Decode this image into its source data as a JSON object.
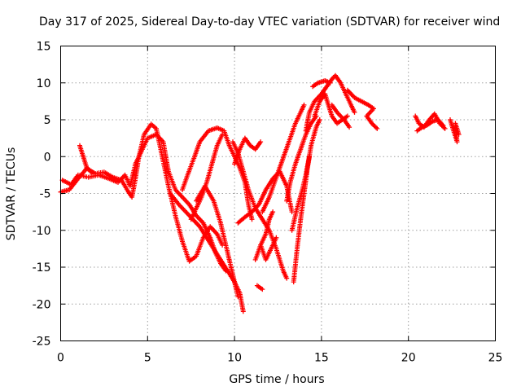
{
  "chart_data": {
    "type": "scatter",
    "title": "Day 317 of 2025, Sidereal Day-to-day VTEC variation (SDTVAR) for receiver wind",
    "xlabel": "GPS time / hours",
    "ylabel": "SDTVAR / TECUs",
    "xlim": [
      0,
      25
    ],
    "ylim": [
      -25,
      15
    ],
    "xticks": [
      "0",
      "5",
      "10",
      "15",
      "20",
      "25"
    ],
    "yticks": [
      "15",
      "10",
      "5",
      "0",
      "-5",
      "-10",
      "-15",
      "-20",
      "-25"
    ],
    "grid": true,
    "legend": "none",
    "marker": "plus",
    "color": "#ff0000",
    "tracks": [
      [
        [
          0.0,
          -4.8
        ],
        [
          0.5,
          -4.5
        ],
        [
          1.0,
          -3.0
        ],
        [
          1.5,
          -1.6
        ],
        [
          2.0,
          -2.3
        ],
        [
          2.5,
          -2.1
        ],
        [
          3.0,
          -2.8
        ],
        [
          3.5,
          -3.2
        ],
        [
          3.9,
          -4.8
        ],
        [
          4.1,
          -5.5
        ],
        [
          4.3,
          -3.0
        ],
        [
          4.5,
          0.0
        ],
        [
          4.8,
          3.0
        ],
        [
          5.2,
          4.4
        ],
        [
          5.5,
          3.8
        ],
        [
          5.8,
          0.5
        ],
        [
          6.2,
          -4.0
        ],
        [
          6.6,
          -8.0
        ],
        [
          7.0,
          -11.5
        ],
        [
          7.4,
          -14.2
        ],
        [
          7.8,
          -13.5
        ],
        [
          8.2,
          -11.0
        ],
        [
          8.6,
          -9.5
        ],
        [
          9.0,
          -10.5
        ],
        [
          9.3,
          -12.0
        ]
      ],
      [
        [
          0.1,
          -3.2
        ],
        [
          0.6,
          -3.8
        ],
        [
          1.0,
          -2.5
        ],
        [
          1.6,
          -2.8
        ],
        [
          2.2,
          -2.5
        ],
        [
          2.8,
          -3.0
        ],
        [
          3.3,
          -3.5
        ],
        [
          3.7,
          -2.5
        ],
        [
          4.0,
          -4.0
        ],
        [
          4.3,
          -1.0
        ],
        [
          4.7,
          1.0
        ],
        [
          5.0,
          2.5
        ],
        [
          5.5,
          3.0
        ],
        [
          5.9,
          2.0
        ],
        [
          6.2,
          -2.0
        ],
        [
          6.6,
          -4.5
        ],
        [
          7.0,
          -5.5
        ],
        [
          7.4,
          -6.5
        ],
        [
          7.8,
          -8.0
        ],
        [
          8.2,
          -9.0
        ],
        [
          8.6,
          -11.0
        ],
        [
          8.9,
          -13.0
        ],
        [
          9.2,
          -14.5
        ],
        [
          9.5,
          -15.5
        ]
      ],
      [
        [
          1.1,
          1.5
        ],
        [
          1.3,
          0.0
        ],
        [
          1.5,
          -1.5
        ],
        [
          1.8,
          -2.2
        ]
      ],
      [
        [
          6.3,
          -5.0
        ],
        [
          6.8,
          -6.5
        ],
        [
          7.2,
          -7.5
        ],
        [
          7.6,
          -8.5
        ],
        [
          8.0,
          -9.5
        ],
        [
          8.4,
          -11.0
        ],
        [
          8.8,
          -12.5
        ],
        [
          9.2,
          -14.0
        ],
        [
          9.6,
          -15.5
        ],
        [
          10.0,
          -17.0
        ],
        [
          10.3,
          -18.5
        ],
        [
          10.5,
          -21.0
        ]
      ],
      [
        [
          7.0,
          -4.5
        ],
        [
          7.3,
          -2.5
        ],
        [
          7.7,
          0.0
        ],
        [
          8.0,
          2.0
        ],
        [
          8.5,
          3.5
        ],
        [
          9.0,
          3.9
        ],
        [
          9.4,
          3.5
        ],
        [
          9.7,
          1.5
        ],
        [
          10.0,
          0.0
        ],
        [
          10.3,
          -1.5
        ],
        [
          10.6,
          -3.5
        ],
        [
          10.8,
          -6.5
        ],
        [
          11.0,
          -8.5
        ]
      ],
      [
        [
          7.5,
          -8.5
        ],
        [
          7.8,
          -7.0
        ],
        [
          8.1,
          -5.5
        ],
        [
          8.4,
          -3.5
        ],
        [
          8.7,
          -1.0
        ],
        [
          9.0,
          1.5
        ],
        [
          9.3,
          3.0
        ]
      ],
      [
        [
          7.8,
          -6.0
        ],
        [
          8.3,
          -4.0
        ],
        [
          8.8,
          -6.0
        ],
        [
          9.2,
          -9.0
        ],
        [
          9.6,
          -13.0
        ],
        [
          9.9,
          -16.0
        ],
        [
          10.2,
          -19.0
        ]
      ],
      [
        [
          9.9,
          2.0
        ],
        [
          10.2,
          0.5
        ],
        [
          10.5,
          -2.0
        ],
        [
          10.8,
          -4.5
        ],
        [
          11.2,
          -7.0
        ],
        [
          11.6,
          -8.5
        ],
        [
          12.0,
          -10.0
        ],
        [
          12.4,
          -12.5
        ],
        [
          12.8,
          -15.5
        ],
        [
          13.0,
          -16.5
        ]
      ],
      [
        [
          10.2,
          -9.0
        ],
        [
          10.6,
          -8.2
        ],
        [
          11.0,
          -7.5
        ],
        [
          11.4,
          -6.5
        ],
        [
          11.8,
          -4.5
        ],
        [
          12.2,
          -3.0
        ],
        [
          12.6,
          -2.0
        ],
        [
          13.0,
          -4.0
        ],
        [
          13.3,
          -7.5
        ]
      ],
      [
        [
          10.0,
          -1.0
        ],
        [
          10.3,
          1.0
        ],
        [
          10.6,
          2.5
        ],
        [
          10.9,
          1.5
        ],
        [
          11.2,
          1.0
        ],
        [
          11.5,
          2.0
        ]
      ],
      [
        [
          11.6,
          -7.5
        ],
        [
          12.0,
          -5.5
        ],
        [
          12.3,
          -3.5
        ],
        [
          12.6,
          -1.5
        ],
        [
          12.9,
          0.5
        ],
        [
          13.2,
          2.5
        ],
        [
          13.5,
          4.5
        ],
        [
          13.8,
          6.0
        ],
        [
          14.0,
          7.0
        ]
      ],
      [
        [
          11.5,
          -12.0
        ],
        [
          11.8,
          -14.0
        ],
        [
          12.1,
          -12.5
        ],
        [
          12.4,
          -11.0
        ]
      ],
      [
        [
          11.2,
          -14.0
        ],
        [
          11.5,
          -12.0
        ],
        [
          11.8,
          -10.5
        ],
        [
          12.0,
          -8.5
        ],
        [
          12.2,
          -7.5
        ]
      ],
      [
        [
          11.3,
          -17.5
        ],
        [
          11.6,
          -18.0
        ]
      ],
      [
        [
          13.0,
          -6.0
        ],
        [
          13.2,
          -3.5
        ],
        [
          13.5,
          -1.0
        ],
        [
          13.8,
          1.0
        ],
        [
          14.1,
          3.0
        ],
        [
          14.4,
          4.5
        ],
        [
          14.7,
          5.5
        ]
      ],
      [
        [
          13.4,
          -17.0
        ],
        [
          13.6,
          -12.5
        ],
        [
          13.8,
          -8.5
        ],
        [
          14.0,
          -5.0
        ],
        [
          14.2,
          -1.5
        ],
        [
          14.4,
          1.5
        ],
        [
          14.7,
          4.0
        ],
        [
          14.9,
          5.0
        ]
      ],
      [
        [
          13.3,
          -10.0
        ],
        [
          13.6,
          -7.0
        ],
        [
          13.9,
          -4.5
        ],
        [
          14.1,
          -2.5
        ],
        [
          14.3,
          0.0
        ]
      ],
      [
        [
          14.1,
          3.5
        ],
        [
          14.3,
          6.0
        ],
        [
          14.6,
          7.5
        ],
        [
          15.0,
          8.5
        ],
        [
          15.3,
          9.5
        ],
        [
          15.6,
          10.5
        ],
        [
          15.8,
          11.0
        ],
        [
          16.1,
          10.0
        ],
        [
          16.4,
          8.5
        ],
        [
          16.7,
          7.0
        ],
        [
          16.9,
          6.0
        ]
      ],
      [
        [
          14.6,
          5.5
        ],
        [
          14.9,
          7.5
        ],
        [
          15.2,
          8.5
        ],
        [
          15.4,
          7.0
        ],
        [
          15.6,
          5.5
        ],
        [
          15.9,
          4.5
        ],
        [
          16.2,
          5.0
        ],
        [
          16.5,
          5.5
        ]
      ],
      [
        [
          14.5,
          9.5
        ],
        [
          14.8,
          10.0
        ],
        [
          15.2,
          10.3
        ],
        [
          15.5,
          10.0
        ]
      ],
      [
        [
          15.6,
          7.0
        ],
        [
          15.9,
          6.0
        ],
        [
          16.3,
          5.0
        ],
        [
          16.6,
          4.0
        ]
      ],
      [
        [
          16.5,
          9.0
        ],
        [
          16.9,
          8.0
        ],
        [
          17.3,
          7.5
        ],
        [
          17.7,
          7.0
        ],
        [
          18.0,
          6.5
        ],
        [
          17.6,
          5.5
        ],
        [
          17.9,
          4.5
        ],
        [
          18.2,
          3.8
        ]
      ],
      [
        [
          20.4,
          5.5
        ],
        [
          20.6,
          4.5
        ],
        [
          20.9,
          4.0
        ],
        [
          21.2,
          5.0
        ],
        [
          21.5,
          5.8
        ],
        [
          21.8,
          4.5
        ],
        [
          22.1,
          3.8
        ]
      ],
      [
        [
          20.5,
          3.5
        ],
        [
          20.8,
          4.0
        ],
        [
          21.1,
          4.3
        ],
        [
          21.4,
          4.8
        ],
        [
          21.7,
          5.0
        ],
        [
          22.0,
          4.2
        ]
      ],
      [
        [
          22.4,
          5.0
        ],
        [
          22.6,
          3.5
        ],
        [
          22.8,
          2.0
        ],
        [
          22.7,
          4.5
        ],
        [
          22.9,
          3.0
        ]
      ]
    ]
  }
}
